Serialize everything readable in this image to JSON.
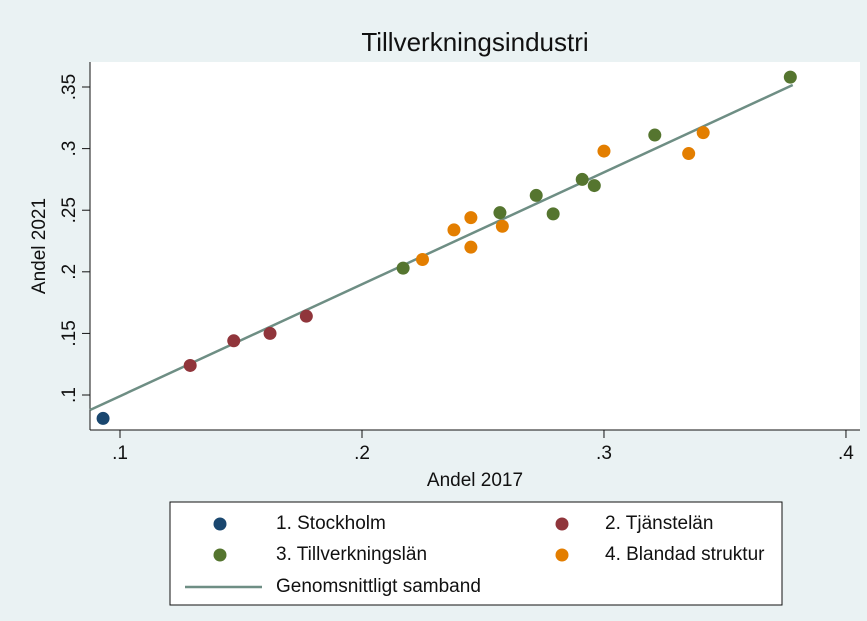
{
  "chart_data": {
    "type": "scatter",
    "title": "Tillverkningsindustri",
    "x_label": "Andel 2017",
    "y_label": "Andel 2021",
    "xlim": [
      0.0876,
      0.4058
    ],
    "ylim": [
      0.0716,
      0.3703
    ],
    "xticks": [
      {
        "value": 0.1,
        "label": ".1"
      },
      {
        "value": 0.2,
        "label": ".2"
      },
      {
        "value": 0.3,
        "label": ".3"
      },
      {
        "value": 0.4,
        "label": ".4"
      }
    ],
    "yticks": [
      {
        "value": 0.1,
        "label": ".1"
      },
      {
        "value": 0.15,
        "label": ".15"
      },
      {
        "value": 0.2,
        "label": ".2"
      },
      {
        "value": 0.25,
        "label": ".25"
      },
      {
        "value": 0.3,
        "label": ".3"
      },
      {
        "value": 0.35,
        "label": ".35"
      }
    ],
    "series": [
      {
        "name": "1. Stockholm",
        "color": "#1a476f",
        "x": [
          0.093
        ],
        "values": [
          0.081
        ]
      },
      {
        "name": "2. Tjänstelän",
        "color": "#90353b",
        "x": [
          0.129,
          0.147,
          0.162,
          0.177
        ],
        "values": [
          0.124,
          0.144,
          0.15,
          0.164
        ]
      },
      {
        "name": "3. Tillverkningslän",
        "color": "#55752f",
        "x": [
          0.217,
          0.257,
          0.272,
          0.279,
          0.291,
          0.296,
          0.321,
          0.377
        ],
        "values": [
          0.203,
          0.248,
          0.262,
          0.247,
          0.275,
          0.27,
          0.311,
          0.358
        ]
      },
      {
        "name": "4. Blandad struktur",
        "color": "#e37e00",
        "x": [
          0.225,
          0.238,
          0.245,
          0.245,
          0.258,
          0.3,
          0.335,
          0.341
        ],
        "values": [
          0.21,
          0.234,
          0.244,
          0.22,
          0.237,
          0.298,
          0.296,
          0.313
        ]
      },
      {
        "name": "Genomsnittligt samband",
        "color": "#6e8e84",
        "type": "line",
        "x": [
          0.0876,
          0.378
        ],
        "values": [
          0.0878,
          0.3516
        ]
      }
    ]
  }
}
